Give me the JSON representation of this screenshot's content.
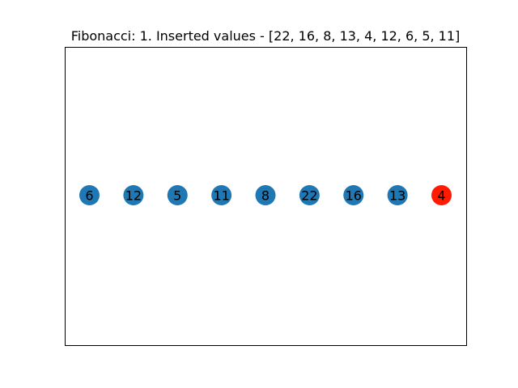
{
  "figure": {
    "title": "Fibonacci: 1. Inserted values - [22, 16, 8, 13, 4, 12, 6, 5, 11]"
  },
  "colors": {
    "node_default": "#1f77b4",
    "node_highlight": "#ff1a00",
    "frame": "#000000",
    "background": "#ffffff"
  },
  "nodes": [
    {
      "label": "6",
      "highlight": false
    },
    {
      "label": "12",
      "highlight": false
    },
    {
      "label": "5",
      "highlight": false
    },
    {
      "label": "11",
      "highlight": false
    },
    {
      "label": "8",
      "highlight": false
    },
    {
      "label": "22",
      "highlight": false
    },
    {
      "label": "16",
      "highlight": false
    },
    {
      "label": "13",
      "highlight": false
    },
    {
      "label": "4",
      "highlight": true
    }
  ]
}
